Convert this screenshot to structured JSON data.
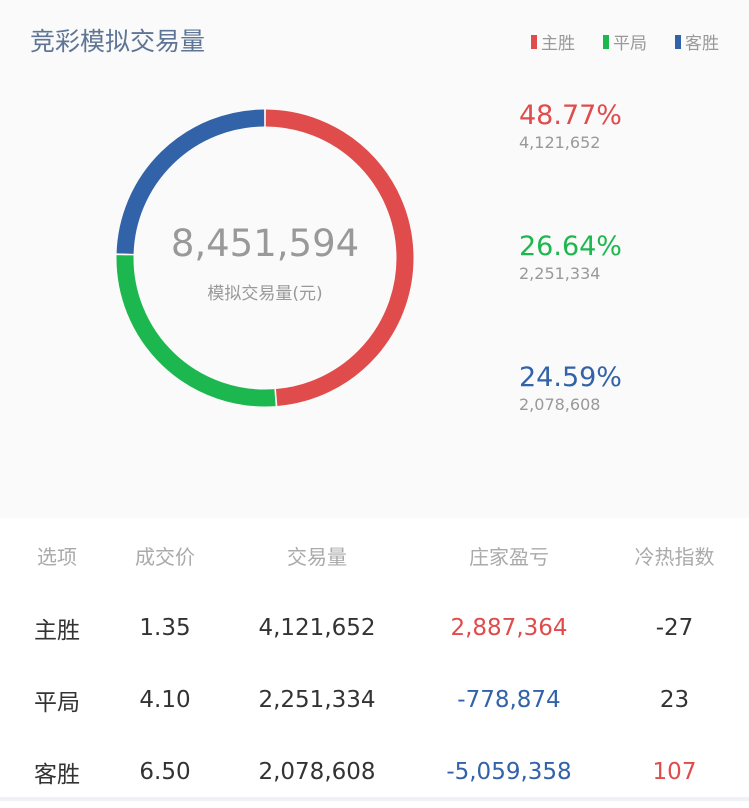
{
  "title": "竞彩模拟交易量",
  "legend": [
    {
      "label": "主胜",
      "color": "#e04b4b"
    },
    {
      "label": "平局",
      "color": "#1cb84f"
    },
    {
      "label": "客胜",
      "color": "#3262a8"
    }
  ],
  "chart_data": {
    "type": "pie",
    "variant": "donut",
    "center_total": "8,451,594",
    "center_label": "模拟交易量(元)",
    "categories": [
      "主胜",
      "平局",
      "客胜"
    ],
    "values": [
      4121652,
      2251334,
      2078608
    ],
    "percents": [
      "48.77%",
      "26.64%",
      "24.59%"
    ],
    "value_labels": [
      "4,121,652",
      "2,251,334",
      "2,078,608"
    ],
    "colors": [
      "#e04b4b",
      "#1cb84f",
      "#3262a8"
    ]
  },
  "table": {
    "headers": [
      "选项",
      "成交价",
      "交易量",
      "庄家盈亏",
      "冷热指数"
    ],
    "rows": [
      {
        "cells": [
          "主胜",
          "1.35",
          "4,121,652",
          "2,887,364",
          "-27"
        ],
        "colors": [
          "#333",
          "#333",
          "#333",
          "#e04b4b",
          "#333"
        ]
      },
      {
        "cells": [
          "平局",
          "4.10",
          "2,251,334",
          "-778,874",
          "23"
        ],
        "colors": [
          "#333",
          "#333",
          "#333",
          "#3262a8",
          "#333"
        ]
      },
      {
        "cells": [
          "客胜",
          "6.50",
          "2,078,608",
          "-5,059,358",
          "107"
        ],
        "colors": [
          "#333",
          "#333",
          "#333",
          "#3262a8",
          "#e04b4b"
        ]
      }
    ]
  }
}
